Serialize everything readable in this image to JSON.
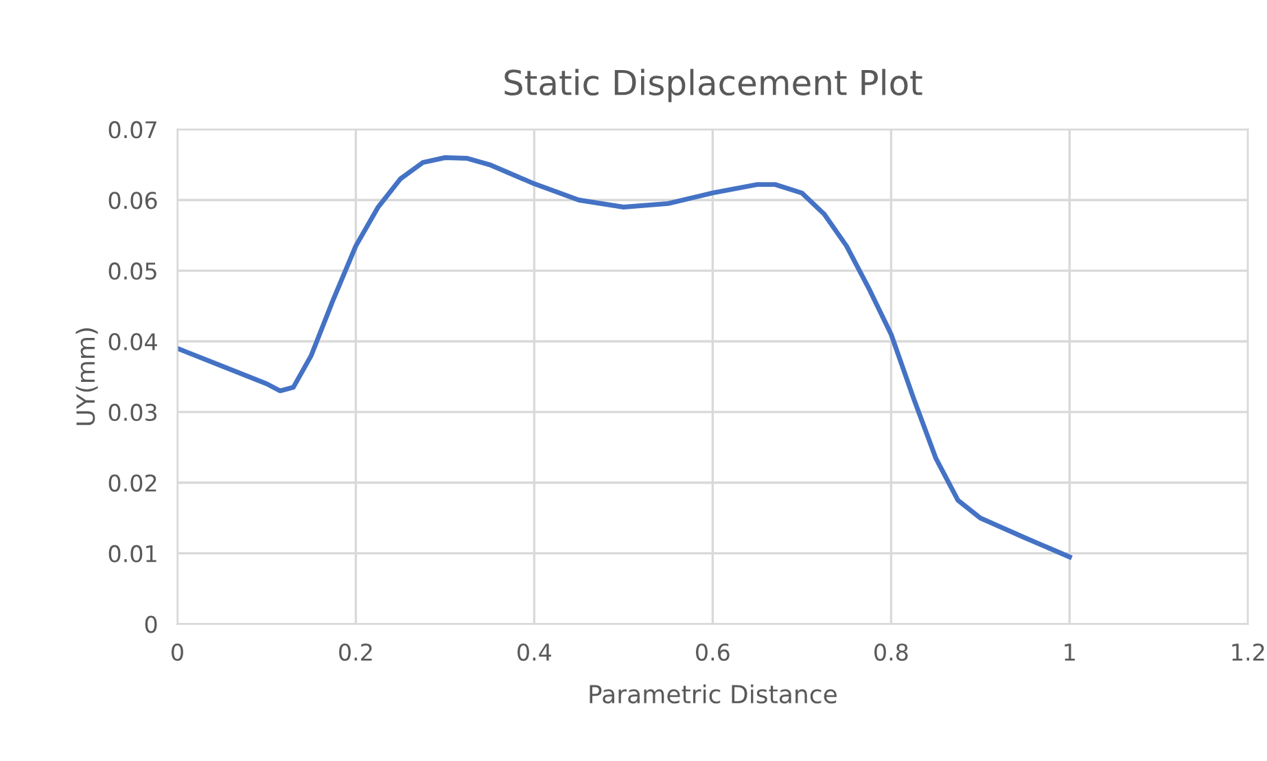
{
  "chart_data": {
    "type": "line",
    "title": "Static Displacement Plot",
    "xlabel": "Parametric Distance",
    "ylabel": "UY(mm)",
    "series": [
      {
        "color": "#4472c4",
        "x": [
          0,
          0.05,
          0.1,
          0.115,
          0.13,
          0.15,
          0.175,
          0.2,
          0.225,
          0.25,
          0.275,
          0.3,
          0.325,
          0.35,
          0.4,
          0.45,
          0.5,
          0.55,
          0.6,
          0.65,
          0.67,
          0.7,
          0.725,
          0.75,
          0.775,
          0.8,
          0.825,
          0.85,
          0.875,
          0.9,
          0.95,
          1.0
        ],
        "values": [
          0.039,
          0.0365,
          0.034,
          0.033,
          0.0335,
          0.038,
          0.046,
          0.0535,
          0.059,
          0.063,
          0.0653,
          0.066,
          0.0659,
          0.065,
          0.0623,
          0.06,
          0.059,
          0.0595,
          0.061,
          0.0622,
          0.0622,
          0.061,
          0.058,
          0.0535,
          0.0475,
          0.041,
          0.032,
          0.0235,
          0.0175,
          0.015,
          0.0122,
          0.0095
        ]
      }
    ],
    "xlim": [
      0,
      1.2
    ],
    "xticks": [
      0,
      0.2,
      0.4,
      0.6,
      0.8,
      1,
      1.2
    ],
    "ylim": [
      0,
      0.07
    ],
    "yticks": [
      0,
      0.01,
      0.02,
      0.03,
      0.04,
      0.05,
      0.06,
      0.07
    ],
    "grid": true,
    "marker": "none",
    "line_style": "solid"
  }
}
